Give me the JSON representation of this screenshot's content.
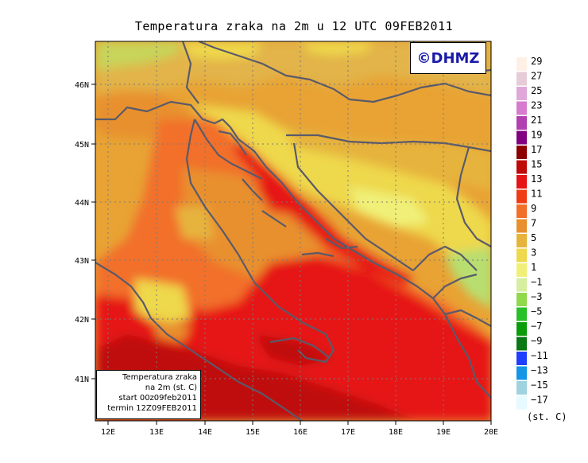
{
  "title": "Temperatura zraka na 2m u 12 UTC 09FEB2011",
  "logo_text": "©DHMZ",
  "info": {
    "line1": "Temperatura zraka",
    "line2": "na 2m (st. C)",
    "line3": "start 00z09feb2011",
    "line4": "termin 12Z09FEB2011"
  },
  "axes": {
    "x_ticks": [
      "12E",
      "13E",
      "14E",
      "15E",
      "16E",
      "17E",
      "18E",
      "19E",
      "20E"
    ],
    "y_ticks": [
      "46N",
      "45N",
      "44N",
      "43N",
      "42N",
      "41N"
    ],
    "lon_range": [
      11.8,
      20.0
    ],
    "lat_range": [
      40.3,
      46.75
    ]
  },
  "legend": {
    "unit": "(st. C)",
    "labels": [
      "29",
      "27",
      "25",
      "23",
      "21",
      "19",
      "17",
      "15",
      "13",
      "11",
      "9",
      "7",
      "5",
      "3",
      "1",
      "−1",
      "−3",
      "−5",
      "−7",
      "−9",
      "−11",
      "−13",
      "−15",
      "−17"
    ],
    "colors": [
      "#fff0e6",
      "#e6ccd6",
      "#e0a8d8",
      "#d67ccf",
      "#b040b0",
      "#800080",
      "#8c0000",
      "#bf0a0a",
      "#e61414",
      "#f03c14",
      "#f26f2a",
      "#e8902e",
      "#e6b43c",
      "#eed84c",
      "#f0f078",
      "#d6eea0",
      "#90d84c",
      "#28c028",
      "#0a9c0a",
      "#0a7814",
      "#1f3fff",
      "#1496e6",
      "#a0d2e0",
      "#e6faff"
    ]
  }
}
